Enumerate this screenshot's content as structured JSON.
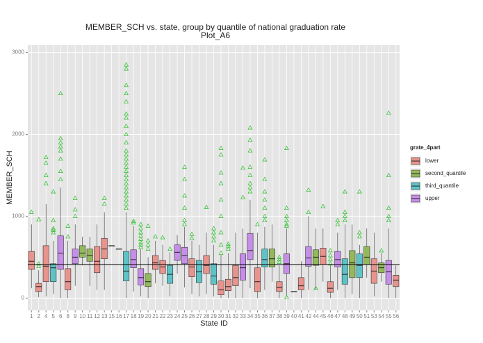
{
  "chart_data": {
    "type": "box",
    "title": "MEMBER_SCH vs. state, group by quantile of national graduation rate",
    "subtitle": "Plot_A6",
    "x_label": "State ID",
    "y_label": "MEMBER_SCH",
    "legend_title": "grate_4part",
    "series": [
      {
        "name": "lower",
        "color": "#e8938c"
      },
      {
        "name": "second_quantile",
        "color": "#93b95a"
      },
      {
        "name": "third_quantile",
        "color": "#5ec3c6"
      },
      {
        "name": "upper",
        "color": "#c68ee9"
      }
    ],
    "outlier_color": "#3cc23c",
    "hline": 410,
    "ylim": [
      -150,
      3090
    ],
    "yticks": [
      0,
      1000,
      2000,
      3000
    ],
    "grid": true,
    "categories": [
      "1",
      "2",
      "4",
      "5",
      "6",
      "8",
      "9",
      "10",
      "11",
      "12",
      "13",
      "15",
      "16",
      "17",
      "18",
      "19",
      "20",
      "21",
      "22",
      "23",
      "24",
      "25",
      "26",
      "27",
      "28",
      "29",
      "30",
      "31",
      "32",
      "33",
      "34",
      "35",
      "36",
      "37",
      "38",
      "39",
      "40",
      "41",
      "42",
      "44",
      "45",
      "46",
      "47",
      "48",
      "49",
      "50",
      "51",
      "53",
      "54",
      "55",
      "56"
    ],
    "group": [
      0,
      0,
      0,
      2,
      3,
      0,
      3,
      1,
      1,
      0,
      0,
      0,
      0,
      2,
      3,
      3,
      1,
      0,
      0,
      2,
      3,
      3,
      0,
      2,
      0,
      2,
      0,
      0,
      0,
      3,
      3,
      0,
      2,
      1,
      0,
      3,
      2,
      0,
      3,
      1,
      0,
      0,
      3,
      2,
      1,
      2,
      1,
      0,
      1,
      3,
      0
    ],
    "stats": [
      [
        120,
        350,
        450,
        570,
        900
      ],
      [
        10,
        80,
        140,
        180,
        340
      ],
      [
        20,
        200,
        390,
        640,
        1150
      ],
      [
        50,
        200,
        370,
        420,
        700
      ],
      [
        0,
        350,
        550,
        760,
        1350
      ],
      [
        0,
        100,
        200,
        360,
        700
      ],
      [
        150,
        420,
        500,
        600,
        900
      ],
      [
        400,
        500,
        550,
        640,
        750
      ],
      [
        150,
        450,
        520,
        600,
        750
      ],
      [
        100,
        310,
        450,
        630,
        900
      ],
      [
        100,
        480,
        600,
        730,
        1050
      ],
      [
        640,
        640,
        640,
        640,
        640
      ],
      [
        600,
        600,
        600,
        600,
        600
      ],
      [
        0,
        210,
        330,
        570,
        1050
      ],
      [
        80,
        370,
        470,
        590,
        880
      ],
      [
        20,
        160,
        250,
        360,
        600
      ],
      [
        0,
        140,
        200,
        300,
        500
      ],
      [
        180,
        350,
        430,
        520,
        700
      ],
      [
        150,
        300,
        380,
        460,
        650
      ],
      [
        20,
        180,
        290,
        400,
        560
      ],
      [
        300,
        460,
        560,
        650,
        770
      ],
      [
        130,
        420,
        520,
        620,
        870
      ],
      [
        50,
        260,
        380,
        480,
        700
      ],
      [
        20,
        190,
        320,
        460,
        650
      ],
      [
        50,
        300,
        400,
        520,
        800
      ],
      [
        20,
        170,
        270,
        420,
        650
      ],
      [
        0,
        40,
        100,
        210,
        530
      ],
      [
        0,
        90,
        140,
        230,
        550
      ],
      [
        0,
        150,
        250,
        400,
        800
      ],
      [
        0,
        220,
        370,
        540,
        850
      ],
      [
        120,
        470,
        580,
        790,
        1200
      ],
      [
        0,
        80,
        200,
        370,
        800
      ],
      [
        100,
        380,
        470,
        600,
        870
      ],
      [
        200,
        380,
        480,
        600,
        900
      ],
      [
        0,
        80,
        130,
        200,
        400
      ],
      [
        20,
        300,
        420,
        540,
        850
      ],
      [
        80,
        80,
        80,
        80,
        80
      ],
      [
        0,
        100,
        150,
        250,
        450
      ],
      [
        100,
        390,
        490,
        630,
        1000
      ],
      [
        100,
        400,
        500,
        590,
        850
      ],
      [
        200,
        410,
        510,
        610,
        850
      ],
      [
        0,
        70,
        120,
        200,
        400
      ],
      [
        100,
        380,
        470,
        570,
        800
      ],
      [
        0,
        170,
        290,
        480,
        900
      ],
      [
        50,
        250,
        430,
        580,
        900
      ],
      [
        0,
        250,
        400,
        540,
        650
      ],
      [
        250,
        410,
        500,
        630,
        850
      ],
      [
        20,
        180,
        330,
        480,
        800
      ],
      [
        200,
        310,
        370,
        430,
        550
      ],
      [
        0,
        170,
        320,
        460,
        850
      ],
      [
        0,
        140,
        220,
        280,
        400
      ]
    ],
    "outliers": [
      [
        1050
      ],
      [
        390,
        420,
        960
      ],
      [
        1400,
        1500,
        1650,
        1720
      ],
      [
        800,
        830,
        850,
        950,
        1300
      ],
      [
        1450,
        1550,
        1700,
        1800,
        1850,
        1900,
        1950,
        2500
      ],
      [
        750,
        880
      ],
      [
        1000,
        1080,
        1220
      ],
      [],
      [],
      [],
      [
        1150,
        1220
      ],
      [],
      [],
      [
        1100,
        1150,
        1200,
        1250,
        1300,
        1350,
        1400,
        1450,
        1500,
        1550,
        1600,
        1650,
        1700,
        1750,
        1800,
        1900,
        2000,
        2100,
        2200,
        2250,
        2400,
        2500,
        2600,
        2800,
        2850
      ],
      [
        920,
        940
      ],
      [
        620,
        650,
        680,
        720,
        760,
        800,
        850,
        900
      ],
      [
        600,
        650,
        700,
        880
      ],
      [
        750
      ],
      [
        740
      ],
      [
        600
      ],
      [],
      [
        900,
        950,
        1100,
        1250,
        1450,
        1600
      ],
      [
        730,
        780
      ],
      [],
      [
        1110
      ],
      [
        700,
        750,
        800,
        850
      ],
      [
        550,
        650,
        800,
        1000,
        1200,
        1400,
        1530,
        1750,
        1830
      ],
      [
        600,
        630,
        660
      ],
      [],
      [
        1230,
        1590
      ],
      [
        1300,
        1350,
        1400,
        1500,
        1600,
        1800,
        1930,
        2080
      ],
      [
        900
      ],
      [
        950,
        1000,
        1100,
        1200,
        1300,
        1450,
        1690
      ],
      [],
      [
        440,
        470,
        500
      ],
      [
        10,
        880,
        900,
        950,
        1000,
        1100,
        1830
      ],
      [],
      [],
      [
        1050,
        1320
      ],
      [
        120
      ],
      [
        1120
      ],
      [
        420,
        470,
        520,
        580
      ],
      [
        900,
        950
      ],
      [
        950,
        1000,
        1050,
        1300
      ],
      [],
      [
        750,
        800,
        1300
      ],
      [],
      [],
      [
        580
      ],
      [
        950,
        1000,
        1100,
        1500,
        2260
      ],
      []
    ]
  }
}
